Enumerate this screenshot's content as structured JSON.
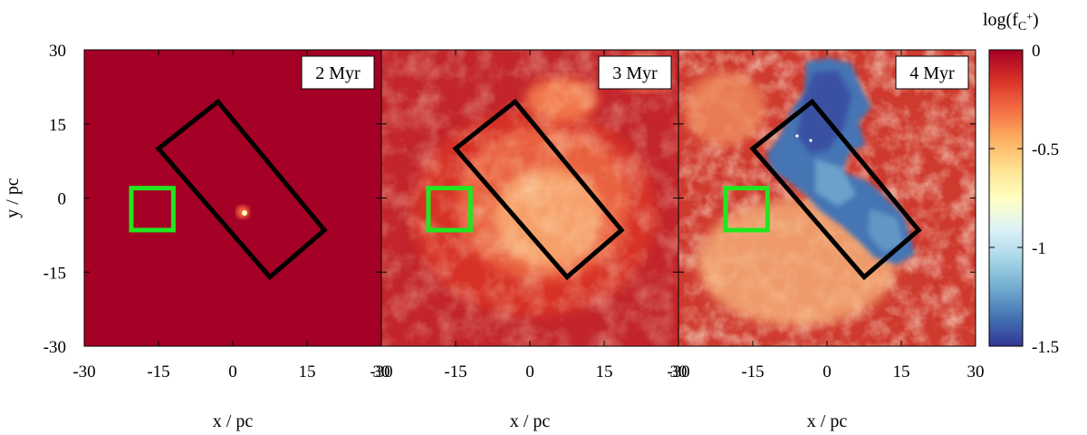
{
  "chart_data": {
    "type": "heatmap",
    "panels": [
      {
        "time_label": "2 Myr"
      },
      {
        "time_label": "3 Myr"
      },
      {
        "time_label": "4 Myr"
      }
    ],
    "xlabel": "x / pc",
    "ylabel": "y / pc",
    "xlim": [
      -30,
      30
    ],
    "ylim": [
      -30,
      30
    ],
    "x_ticks": [
      -30,
      -15,
      0,
      15,
      30
    ],
    "x_tick_labels": [
      "-30",
      "-15",
      "0",
      "15",
      "30"
    ],
    "y_ticks": [
      30,
      15,
      0,
      -15,
      -30
    ],
    "y_tick_labels": [
      "30",
      "15",
      "0",
      "-15",
      "-30"
    ],
    "colorbar": {
      "title_prefix": "log(f",
      "title_sub": "C",
      "title_sup": "+",
      "title_suffix": ")",
      "range": [
        -1.5,
        0
      ],
      "ticks": [
        0,
        -0.5,
        -1,
        -1.5
      ],
      "tick_labels": [
        "0",
        "-0.5",
        "-1",
        "-1.5"
      ],
      "colors": [
        "#a50026",
        "#d73027",
        "#f46d43",
        "#fdae61",
        "#fee090",
        "#ffffbf",
        "#e0f3f8",
        "#abd9e9",
        "#74add1",
        "#4575b4",
        "#313695"
      ]
    },
    "black_rectangle_corners": [
      [
        -15,
        10
      ],
      [
        -3,
        19.5
      ],
      [
        18.5,
        -6.5
      ],
      [
        7.5,
        -16
      ]
    ],
    "green_square": {
      "x_range": [
        -20.5,
        -12
      ],
      "y_range": [
        -6.5,
        2
      ]
    },
    "annotation_colors": {
      "black_box": "#000000",
      "green_box": "#22e61e"
    }
  }
}
